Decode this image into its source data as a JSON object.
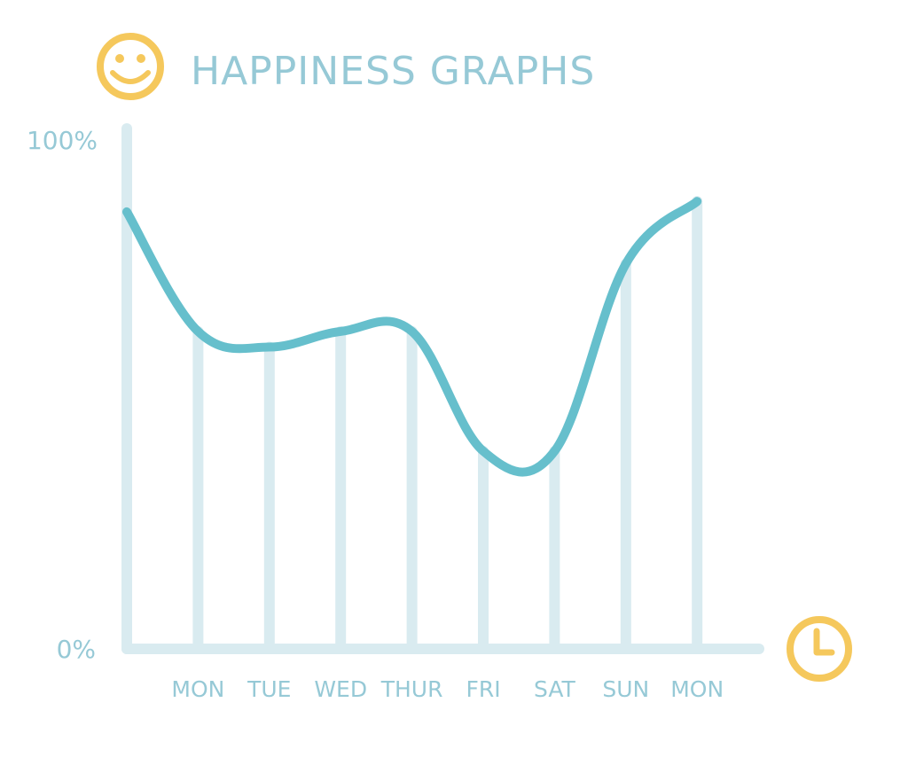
{
  "chart_data": {
    "type": "line",
    "title": "HAPPINESS GRAPHS",
    "categories": [
      "",
      "MON",
      "TUE",
      "WED",
      "THUR",
      "FRI",
      "SAT",
      "SUN",
      "MON"
    ],
    "values": [
      84,
      61,
      58,
      61,
      61,
      38,
      38,
      74,
      86
    ],
    "y_ticks": [
      "100%",
      "0%"
    ],
    "ylim": [
      0,
      100
    ],
    "grid": true,
    "legend": "none",
    "colors": {
      "line": "#66bfcc",
      "grid": "#d9ebf0",
      "text": "#96c9d6",
      "icon": "#f5c85c"
    },
    "icons": {
      "title_icon": "smiley-icon",
      "x_axis_icon": "clock-icon"
    }
  }
}
